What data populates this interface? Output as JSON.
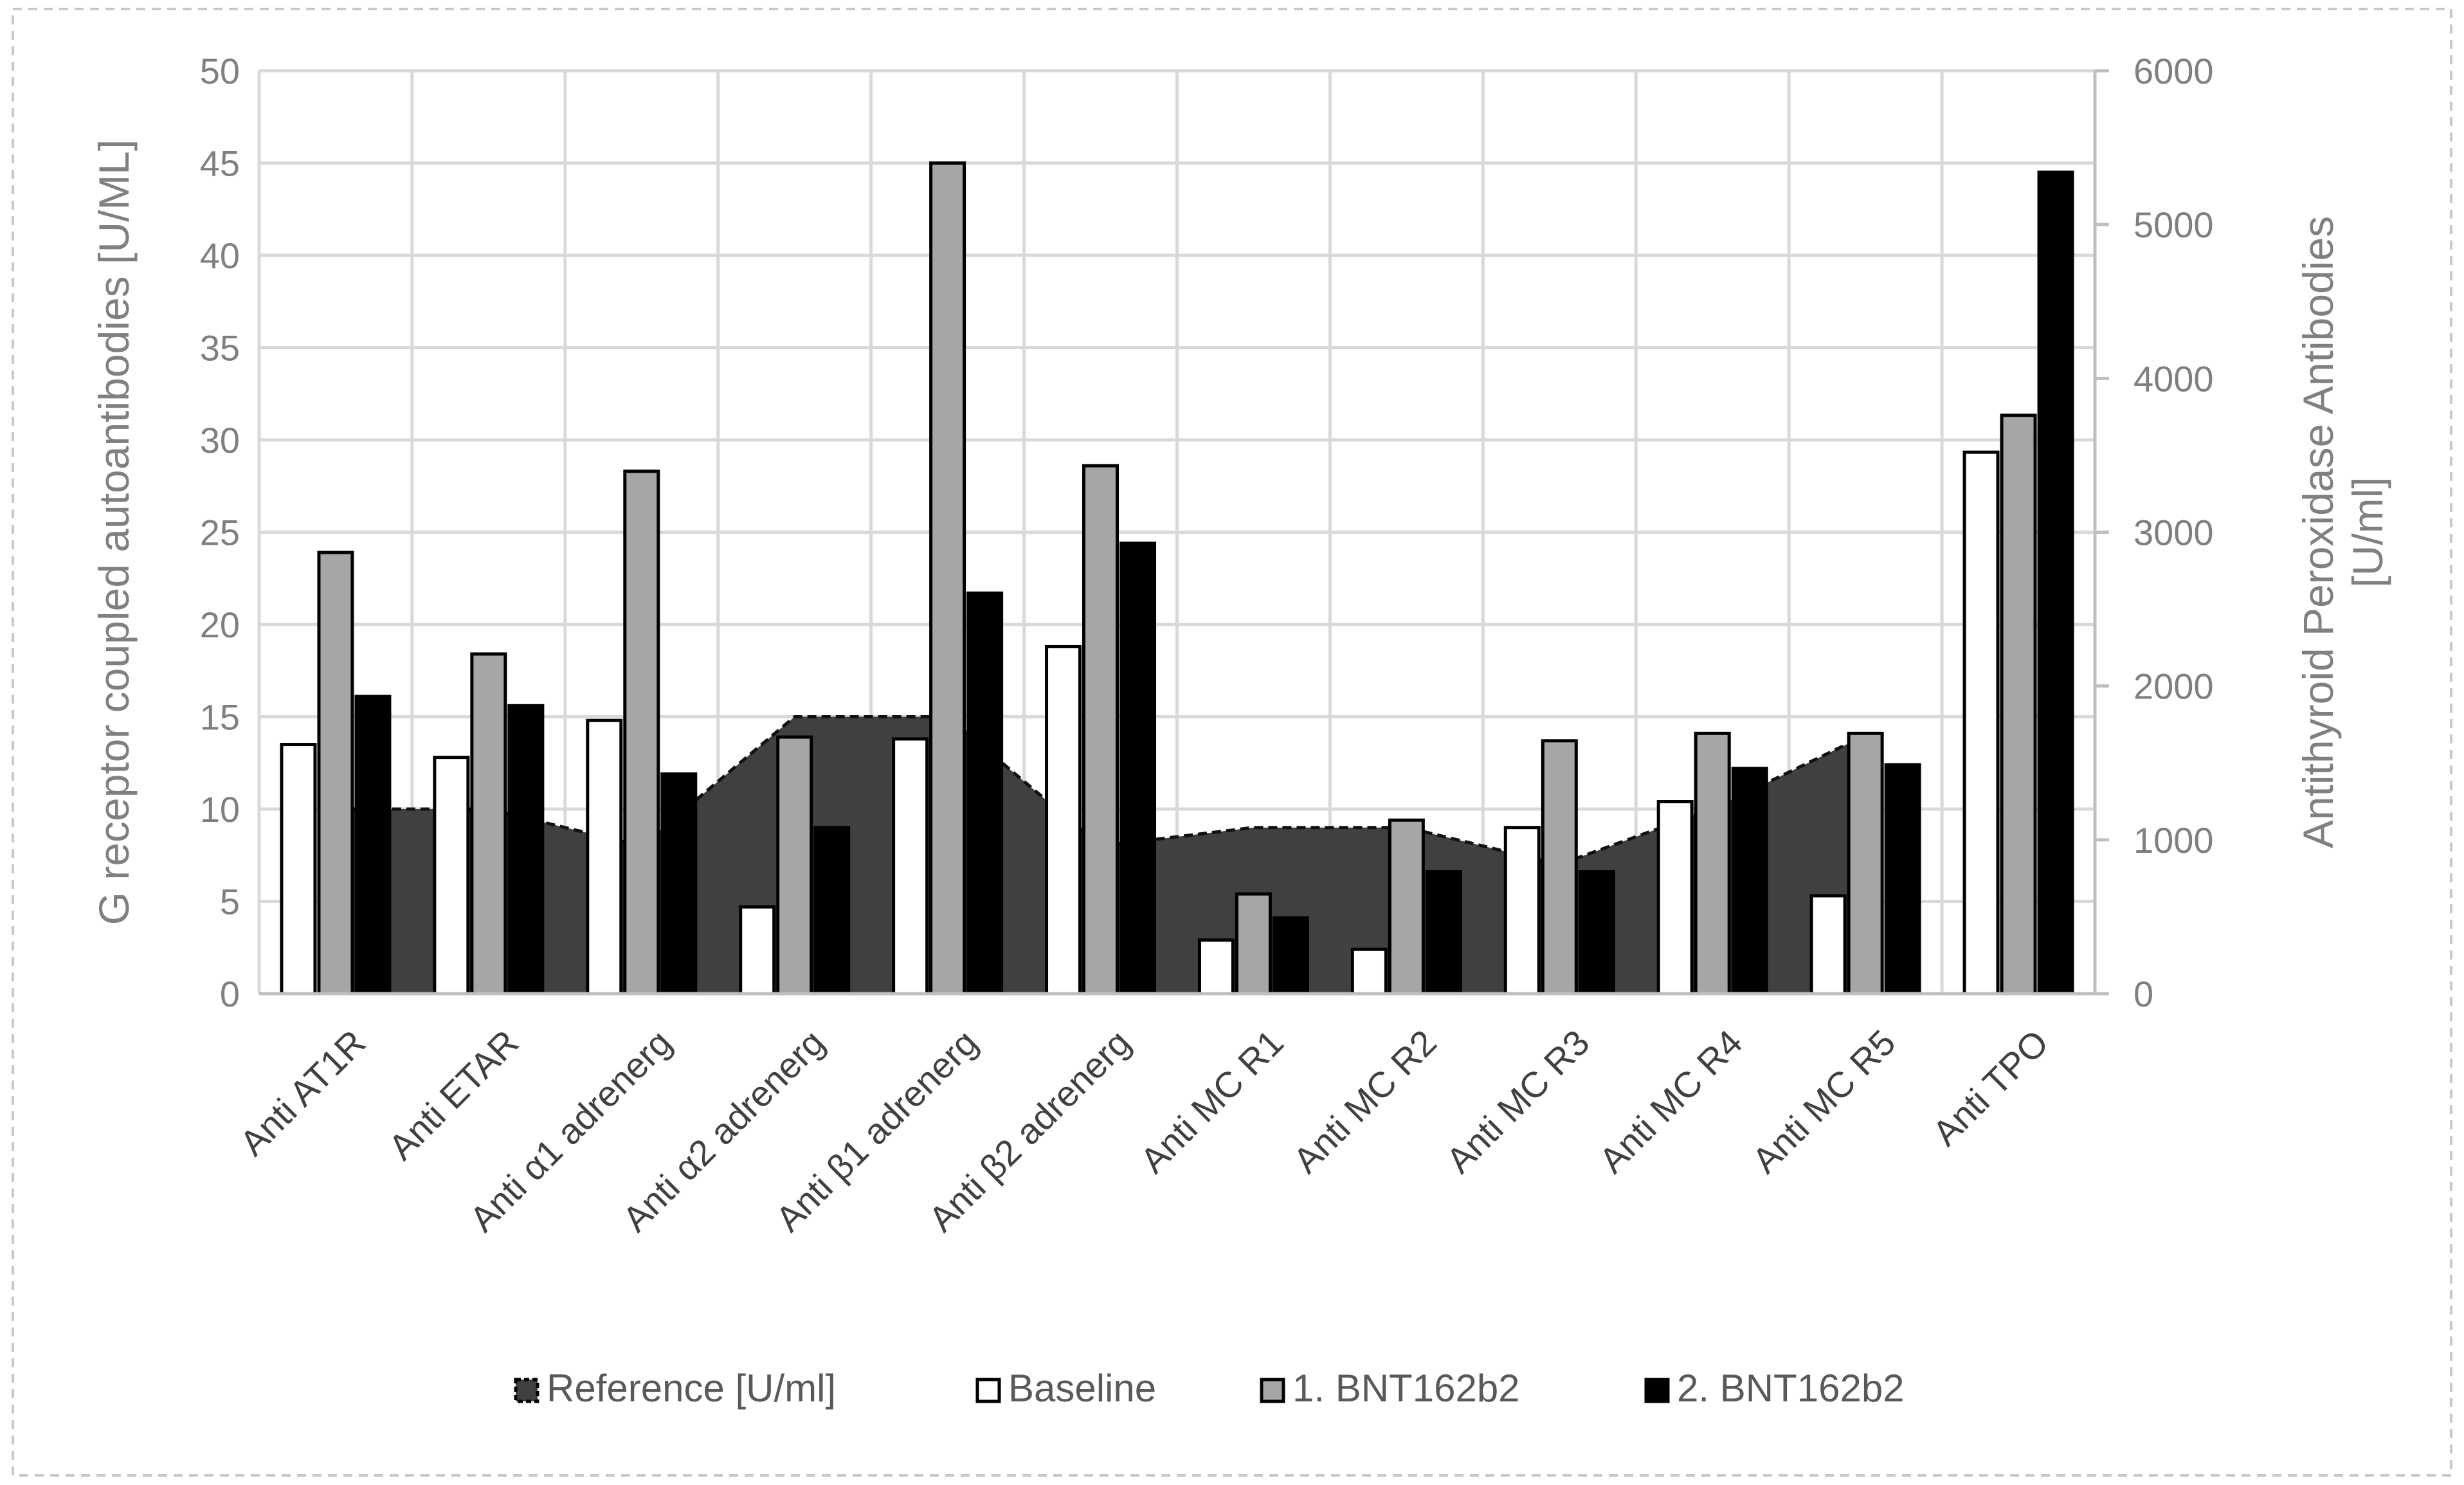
{
  "chart_data": {
    "type": "bar",
    "categories": [
      "Anti AT1R",
      "Anti ETAR",
      "Anti α1 adrenerg",
      "Anti α2 adrenerg",
      "Anti β1 adrenerg",
      "Anti β2 adrenerg",
      "Anti MC R1",
      "Anti MC R2",
      "Anti MC R3",
      "Anti MC R4",
      "Anti MC R5",
      "Anti TPO"
    ],
    "reference": {
      "name": "Reference [U/ml]",
      "type": "area",
      "values": [
        10,
        10,
        8,
        15,
        15,
        8,
        9,
        9,
        7,
        10,
        14,
        null
      ]
    },
    "series": [
      {
        "name": "Baseline",
        "values": [
          13.5,
          12.8,
          14.8,
          4.7,
          13.8,
          18.8,
          2.9,
          2.4,
          9.0,
          10.4,
          5.3,
          3520
        ]
      },
      {
        "name": "1. BNT162b2",
        "values": [
          23.9,
          18.4,
          28.3,
          13.9,
          45.0,
          28.6,
          5.4,
          9.4,
          13.7,
          14.1,
          14.1,
          3760
        ]
      },
      {
        "name": "2. BNT162b2",
        "values": [
          16.1,
          15.6,
          11.9,
          9.0,
          21.7,
          24.4,
          4.1,
          6.6,
          6.6,
          12.2,
          12.4,
          5340
        ]
      }
    ],
    "secondary_axis_categories": [
      "Anti TPO"
    ],
    "ylabel": "G receptor coupled autoantibodies [U/ML]",
    "y2label_lines": [
      "Antithyroid Peroxidase Antibodies",
      "[U/ml]"
    ],
    "ylim": [
      0,
      50
    ],
    "y2lim": [
      0,
      6000
    ],
    "yticks": [
      "0",
      "5",
      "10",
      "15",
      "20",
      "25",
      "30",
      "35",
      "40",
      "45",
      "50"
    ],
    "y2ticks": [
      "0",
      "1000",
      "2000",
      "3000",
      "4000",
      "5000",
      "6000"
    ],
    "grid": true,
    "legend_position": "bottom",
    "colors": {
      "reference": "#404040",
      "baseline": "#ffffff",
      "dose1": "#a6a6a6",
      "dose2": "#000000",
      "grid": "#d9d9d9"
    }
  }
}
